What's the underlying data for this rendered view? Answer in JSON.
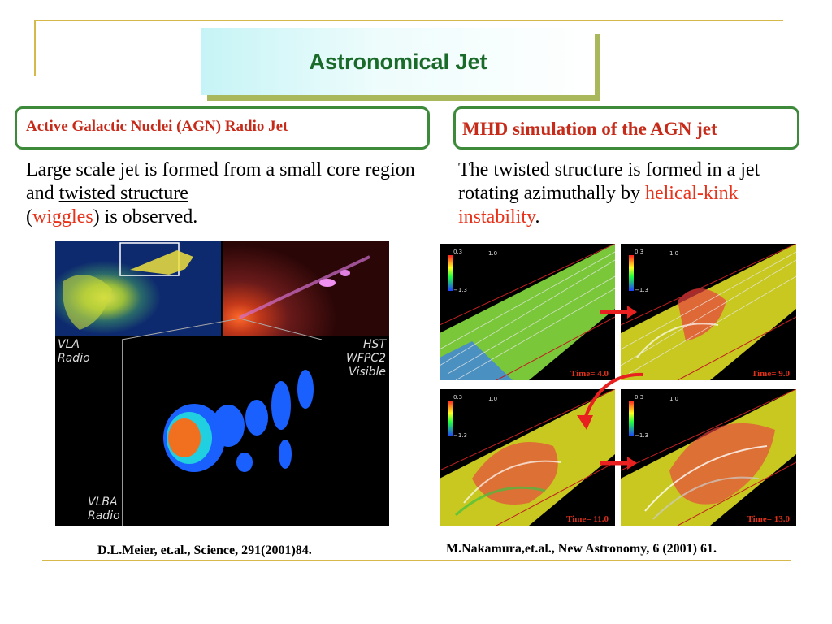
{
  "slide": {
    "title": "Astronomical Jet",
    "left": {
      "heading": "Active Galactic Nuclei (AGN) Radio Jet",
      "para_1": "Large scale jet is formed from a small core region and ",
      "para_link": "twisted structure",
      "para_2": " (",
      "para_red": "wiggles",
      "para_3": ") is observed.",
      "labels": {
        "vla": [
          "VLA",
          "Radio"
        ],
        "hst": [
          "HST",
          "WFPC2",
          "Visible"
        ],
        "vlba": [
          "VLBA",
          "Radio"
        ]
      },
      "citation": "D.L.Meier, et.al., Science, 291(2001)84."
    },
    "right": {
      "heading": "MHD simulation of the AGN jet",
      "para_1": "The twisted structure is formed in a jet rotating azimuthally by ",
      "para_red": "helical-kink instability",
      "para_2": ".",
      "panels": [
        {
          "time": "Time=  4.0",
          "scale_top": "0.3",
          "scale_bottom": "−1.3",
          "ref": "1.0"
        },
        {
          "time": "Time=  9.0",
          "scale_top": "0.3",
          "scale_bottom": "−1.3",
          "ref": "1.0"
        },
        {
          "time": "Time= 11.0",
          "scale_top": "0.3",
          "scale_bottom": "−1.3",
          "ref": "1.0"
        },
        {
          "time": "Time= 13.0",
          "scale_top": "0.3",
          "scale_bottom": "−1.3",
          "ref": "1.0"
        }
      ],
      "citation": "M.Nakamura,et.al., New Astronomy, 6 (2001) 61."
    },
    "colors": {
      "title": "#1a6b2a",
      "box_border": "#3d8a3a",
      "accent_red": "#e8321a",
      "frame": "#d6b94a"
    }
  }
}
